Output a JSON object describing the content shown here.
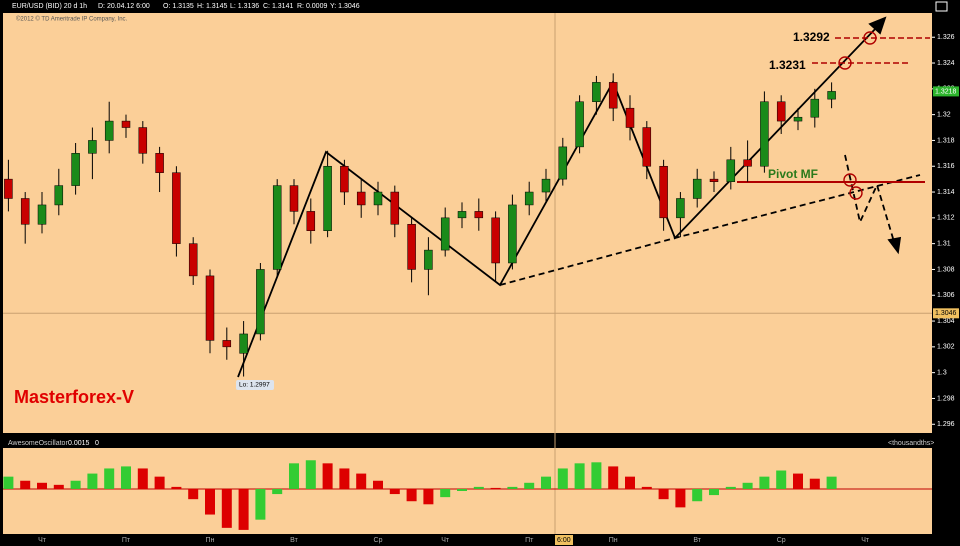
{
  "header": {
    "symbol": "EUR/USD (BID) 20 d 1h",
    "date": "D: 20.04.12 6:00",
    "open": "O: 1.3135",
    "high": "H: 1.3145",
    "low": "L: 1.3136",
    "close": "C: 1.3141",
    "range": "R: 0.0009",
    "y": "Y: 1.3046",
    "copyright": "©2012 © TD Ameritrade IP Company, Inc."
  },
  "chart_data": [
    {
      "type": "candlestick",
      "background": "#fbcf98",
      "up_color": "#1a8a1a",
      "down_color": "#c80000",
      "ylim": [
        1.2954,
        1.3278
      ],
      "yticks": [
        1.296,
        1.298,
        1.3,
        1.302,
        1.304,
        1.306,
        1.308,
        1.31,
        1.312,
        1.314,
        1.316,
        1.318,
        1.32,
        1.322,
        1.324,
        1.326
      ],
      "categories": [
        null,
        null,
        "Чт",
        null,
        null,
        null,
        null,
        "Пт",
        null,
        null,
        null,
        null,
        "Пн",
        null,
        null,
        null,
        null,
        "Вт",
        null,
        null,
        null,
        null,
        "Ср",
        null,
        null,
        null,
        "Чт",
        null,
        null,
        null,
        null,
        "Пт",
        null,
        "6:00",
        null,
        null,
        "Пн",
        null,
        null,
        null,
        null,
        "Вт",
        null,
        null,
        null,
        null,
        "Ср",
        null,
        null,
        null,
        null,
        "Чт",
        null
      ],
      "open": [
        1.315,
        1.3135,
        1.3115,
        1.313,
        1.3145,
        1.317,
        1.318,
        1.3195,
        1.319,
        1.317,
        1.3155,
        1.31,
        1.3075,
        1.3025,
        1.3015,
        1.303,
        1.308,
        1.3145,
        1.3125,
        1.311,
        1.316,
        1.314,
        1.313,
        1.314,
        1.3115,
        1.308,
        1.3095,
        1.312,
        1.3125,
        1.312,
        1.3085,
        1.313,
        1.314,
        1.315,
        1.3175,
        1.321,
        1.3225,
        1.3205,
        1.319,
        1.316,
        1.312,
        1.3135,
        1.315,
        1.3148,
        1.3165,
        1.316,
        1.321,
        1.3195,
        1.3198,
        1.3212,
        null,
        null,
        null
      ],
      "high": [
        1.3165,
        1.314,
        1.314,
        1.3158,
        1.3178,
        1.319,
        1.321,
        1.32,
        1.3195,
        1.3175,
        1.316,
        1.3105,
        1.308,
        1.3035,
        1.304,
        1.3085,
        1.315,
        1.315,
        1.3135,
        1.3172,
        1.3165,
        1.315,
        1.3148,
        1.3145,
        1.312,
        1.3105,
        1.3128,
        1.3132,
        1.3135,
        1.3125,
        1.3138,
        1.3148,
        1.3158,
        1.3182,
        1.3215,
        1.323,
        1.3232,
        1.3215,
        1.3195,
        1.3165,
        1.314,
        1.3158,
        1.3156,
        1.3175,
        1.318,
        1.3218,
        1.3215,
        1.3205,
        1.322,
        1.3225,
        null,
        null,
        null
      ],
      "low": [
        1.3125,
        1.31,
        1.3108,
        1.3122,
        1.3138,
        1.315,
        1.317,
        1.3182,
        1.3162,
        1.314,
        1.309,
        1.3068,
        1.3015,
        1.301,
        1.2997,
        1.3025,
        1.3075,
        1.3115,
        1.31,
        1.3105,
        1.313,
        1.312,
        1.3122,
        1.3105,
        1.307,
        1.306,
        1.309,
        1.3112,
        1.311,
        1.307,
        1.308,
        1.3122,
        1.3132,
        1.3145,
        1.317,
        1.32,
        1.3195,
        1.318,
        1.315,
        1.311,
        1.3105,
        1.3128,
        1.314,
        1.3142,
        1.3148,
        1.3155,
        1.3185,
        1.3188,
        1.319,
        1.3205,
        null,
        null,
        null
      ],
      "close": [
        1.3135,
        1.3115,
        1.313,
        1.3145,
        1.317,
        1.318,
        1.3195,
        1.319,
        1.317,
        1.3155,
        1.31,
        1.3075,
        1.3025,
        1.302,
        1.303,
        1.308,
        1.3145,
        1.3125,
        1.311,
        1.316,
        1.314,
        1.313,
        1.314,
        1.3115,
        1.308,
        1.3095,
        1.312,
        1.3125,
        1.312,
        1.3085,
        1.313,
        1.314,
        1.315,
        1.3175,
        1.321,
        1.3225,
        1.3205,
        1.319,
        1.316,
        1.312,
        1.3135,
        1.315,
        1.3148,
        1.3165,
        1.316,
        1.321,
        1.3195,
        1.3198,
        1.3212,
        1.3218,
        null,
        null,
        null
      ],
      "crosshair": {
        "x_label": "6:00",
        "y_value": 1.3046
      },
      "annotations": {
        "brand": "Masterforex-V",
        "low_label": "Lo: 1.2997",
        "target_1": "1.3292",
        "target_2": "1.3231",
        "pivot": "Pivot MF"
      }
    },
    {
      "type": "bar",
      "title": "AwesomeOscillator",
      "value_text": "0.0015",
      "zero_text": "0",
      "unit_text": "<thousandths>",
      "up_color": "#33cc33",
      "down_color": "#dd0000",
      "ylim": [
        -0.0044,
        0.0039
      ],
      "values": [
        0.0012,
        0.0008,
        0.0006,
        0.0004,
        0.0008,
        0.0015,
        0.002,
        0.0022,
        0.002,
        0.0012,
        0.0002,
        -0.001,
        -0.0025,
        -0.0038,
        -0.004,
        -0.003,
        -0.0005,
        0.0025,
        0.0028,
        0.0025,
        0.002,
        0.0015,
        0.0008,
        -0.0005,
        -0.0012,
        -0.0015,
        -0.0008,
        -0.0002,
        0.0002,
        0.0001,
        0.0002,
        0.0006,
        0.0012,
        0.002,
        0.0025,
        0.0026,
        0.0022,
        0.0012,
        0.0002,
        -0.001,
        -0.0018,
        -0.0012,
        -0.0006,
        0.0002,
        0.0006,
        0.0012,
        0.0018,
        0.0015,
        0.001,
        0.0012,
        null,
        null,
        null
      ]
    }
  ]
}
